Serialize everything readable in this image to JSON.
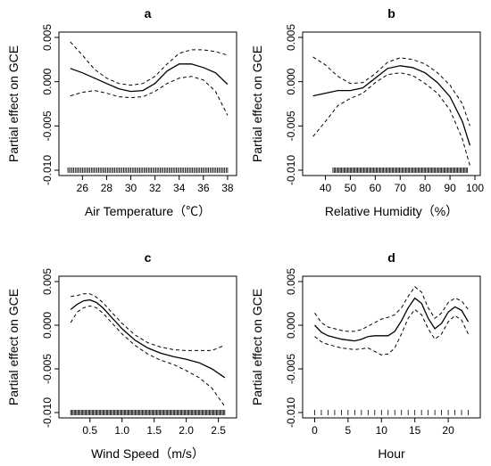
{
  "chart_data": [
    {
      "panel": "a",
      "type": "line",
      "xlabel": "Air Temperature（℃）",
      "ylabel": "Partial effect on GCE",
      "xlim": [
        24.5,
        38.3
      ],
      "ylim": [
        -0.01,
        0.005
      ],
      "xticks": [
        "26",
        "28",
        "30",
        "32",
        "34",
        "36",
        "38"
      ],
      "yticks": [
        "-0.010",
        "-0.005",
        "0.000",
        "0.005"
      ],
      "series": [
        {
          "role": "fit",
          "x": [
            25,
            26,
            27,
            28,
            29,
            30,
            31,
            32,
            33,
            34,
            35,
            36,
            37,
            38
          ],
          "y": [
            0.0015,
            0.001,
            0.0004,
            -0.0002,
            -0.0008,
            -0.0011,
            -0.001,
            -0.0002,
            0.0012,
            0.002,
            0.002,
            0.0016,
            0.001,
            -0.0003
          ]
        },
        {
          "role": "ci_upper",
          "x": [
            25,
            26,
            27,
            28,
            29,
            30,
            31,
            32,
            33,
            34,
            35,
            36,
            37,
            38
          ],
          "y": [
            0.0045,
            0.003,
            0.0014,
            0.0004,
            -0.0002,
            -0.0004,
            -0.0002,
            0.0006,
            0.002,
            0.0032,
            0.0036,
            0.0036,
            0.0034,
            0.003
          ]
        },
        {
          "role": "ci_lower",
          "x": [
            25,
            26,
            27,
            28,
            29,
            30,
            31,
            32,
            33,
            34,
            35,
            36,
            37,
            38
          ],
          "y": [
            -0.0016,
            -0.0012,
            -0.001,
            -0.0013,
            -0.0017,
            -0.0018,
            -0.0017,
            -0.0011,
            -0.0002,
            0.0004,
            0.0006,
            0.0002,
            -0.0011,
            -0.0038
          ]
        }
      ],
      "rug": {
        "from": 24.8,
        "to": 38.0,
        "count": 110
      }
    },
    {
      "panel": "b",
      "type": "line",
      "xlabel": "Relative Humidity（%）",
      "ylabel": "Partial effect on GCE",
      "xlim": [
        33,
        100
      ],
      "ylim": [
        -0.01,
        0.005
      ],
      "xticks": [
        "40",
        "50",
        "60",
        "70",
        "80",
        "90",
        "100"
      ],
      "yticks": [
        "-0.010",
        "-0.005",
        "0.000",
        "0.005"
      ],
      "series": [
        {
          "role": "fit",
          "x": [
            35,
            40,
            45,
            50,
            55,
            60,
            65,
            70,
            75,
            80,
            85,
            90,
            95,
            98
          ],
          "y": [
            -0.0016,
            -0.0013,
            -0.001,
            -0.001,
            -0.0007,
            0.0004,
            0.0015,
            0.0018,
            0.0016,
            0.001,
            -0.0001,
            -0.0017,
            -0.0045,
            -0.0072
          ]
        },
        {
          "role": "ci_upper",
          "x": [
            35,
            40,
            45,
            50,
            55,
            60,
            65,
            70,
            75,
            80,
            85,
            90,
            95,
            98
          ],
          "y": [
            0.0028,
            0.0019,
            0.0006,
            -0.0002,
            -0.0001,
            0.0009,
            0.0022,
            0.0027,
            0.0025,
            0.002,
            0.001,
            -0.0004,
            -0.0025,
            -0.005
          ]
        },
        {
          "role": "ci_lower",
          "x": [
            35,
            40,
            45,
            50,
            55,
            60,
            65,
            70,
            75,
            80,
            85,
            90,
            95,
            98
          ],
          "y": [
            -0.0062,
            -0.0045,
            -0.0027,
            -0.0019,
            -0.0013,
            -0.0001,
            0.0008,
            0.001,
            0.0007,
            -0.0002,
            -0.0013,
            -0.0032,
            -0.0065,
            -0.0095
          ]
        }
      ],
      "rug": {
        "from": 43,
        "to": 97,
        "count": 110
      }
    },
    {
      "panel": "c",
      "type": "line",
      "xlabel": "Wind Speed（m/s）",
      "ylabel": "Partial effect on GCE",
      "xlim": [
        0.1,
        2.7
      ],
      "ylim": [
        -0.01,
        0.005
      ],
      "xticks": [
        "0.5",
        "1.0",
        "1.5",
        "2.0",
        "2.5"
      ],
      "yticks": [
        "-0.010",
        "-0.005",
        "0.000",
        "0.005"
      ],
      "series": [
        {
          "role": "fit",
          "x": [
            0.2,
            0.3,
            0.4,
            0.5,
            0.6,
            0.7,
            0.8,
            1.0,
            1.2,
            1.4,
            1.6,
            1.8,
            2.0,
            2.2,
            2.4,
            2.6
          ],
          "y": [
            0.0018,
            0.0024,
            0.0028,
            0.0029,
            0.0026,
            0.002,
            0.0012,
            -0.0004,
            -0.0017,
            -0.0026,
            -0.0032,
            -0.0036,
            -0.0039,
            -0.0043,
            -0.005,
            -0.006
          ]
        },
        {
          "role": "ci_upper",
          "x": [
            0.2,
            0.3,
            0.4,
            0.5,
            0.6,
            0.7,
            0.8,
            1.0,
            1.2,
            1.4,
            1.6,
            1.8,
            2.0,
            2.2,
            2.4,
            2.6
          ],
          "y": [
            0.0033,
            0.0034,
            0.0036,
            0.0036,
            0.0032,
            0.0026,
            0.0018,
            0.0002,
            -0.0011,
            -0.002,
            -0.0025,
            -0.0028,
            -0.0029,
            -0.0029,
            -0.0029,
            -0.0023
          ]
        },
        {
          "role": "ci_lower",
          "x": [
            0.2,
            0.3,
            0.4,
            0.5,
            0.6,
            0.7,
            0.8,
            1.0,
            1.2,
            1.4,
            1.6,
            1.8,
            2.0,
            2.2,
            2.4,
            2.6
          ],
          "y": [
            0.0003,
            0.0015,
            0.002,
            0.0022,
            0.002,
            0.0014,
            0.0006,
            -0.001,
            -0.0023,
            -0.0033,
            -0.004,
            -0.0045,
            -0.0052,
            -0.006,
            -0.0072,
            -0.0093
          ]
        }
      ],
      "rug": {
        "from": 0.2,
        "to": 2.6,
        "count": 130
      }
    },
    {
      "panel": "d",
      "type": "line",
      "xlabel": "Hour",
      "ylabel": "Partial effect on GCE",
      "xlim": [
        -1,
        24
      ],
      "ylim": [
        -0.01,
        0.005
      ],
      "xticks": [
        "0",
        "5",
        "10",
        "15",
        "20"
      ],
      "yticks": [
        "-0.010",
        "-0.005",
        "0.000",
        "0.005"
      ],
      "series": [
        {
          "role": "fit",
          "x": [
            0,
            1,
            2,
            3,
            4,
            5,
            6,
            7,
            8,
            9,
            10,
            11,
            12,
            13,
            14,
            15,
            16,
            17,
            18,
            19,
            20,
            21,
            22,
            23
          ],
          "y": [
            0.0,
            -0.0008,
            -0.0012,
            -0.0014,
            -0.0016,
            -0.0017,
            -0.0018,
            -0.0016,
            -0.0013,
            -0.0012,
            -0.0012,
            -0.0012,
            -0.0007,
            0.0005,
            0.002,
            0.0031,
            0.0025,
            0.0008,
            -0.0004,
            0.0002,
            0.0015,
            0.0021,
            0.0017,
            0.0004
          ]
        },
        {
          "role": "ci_upper",
          "x": [
            0,
            1,
            2,
            3,
            4,
            5,
            6,
            7,
            8,
            9,
            10,
            11,
            12,
            13,
            14,
            15,
            16,
            17,
            18,
            19,
            20,
            21,
            22,
            23
          ],
          "y": [
            0.0014,
            0.0003,
            -0.0002,
            -0.0004,
            -0.0006,
            -0.0007,
            -0.0007,
            -0.0005,
            -0.0001,
            0.0003,
            0.0007,
            0.0009,
            0.0012,
            0.002,
            0.0033,
            0.0044,
            0.0038,
            0.002,
            0.0008,
            0.0014,
            0.0026,
            0.0031,
            0.0028,
            0.0018
          ]
        },
        {
          "role": "ci_lower",
          "x": [
            0,
            1,
            2,
            3,
            4,
            5,
            6,
            7,
            8,
            9,
            10,
            11,
            12,
            13,
            14,
            15,
            16,
            17,
            18,
            19,
            20,
            21,
            22,
            23
          ],
          "y": [
            -0.0013,
            -0.0019,
            -0.0022,
            -0.0024,
            -0.0026,
            -0.0027,
            -0.0028,
            -0.0027,
            -0.0026,
            -0.003,
            -0.0034,
            -0.0033,
            -0.0026,
            -0.001,
            0.0008,
            0.0018,
            0.0012,
            -0.0004,
            -0.0016,
            -0.001,
            0.0004,
            0.0011,
            0.0006,
            -0.001
          ]
        }
      ],
      "rug": {
        "from": 0,
        "to": 23,
        "count": 24
      }
    }
  ]
}
